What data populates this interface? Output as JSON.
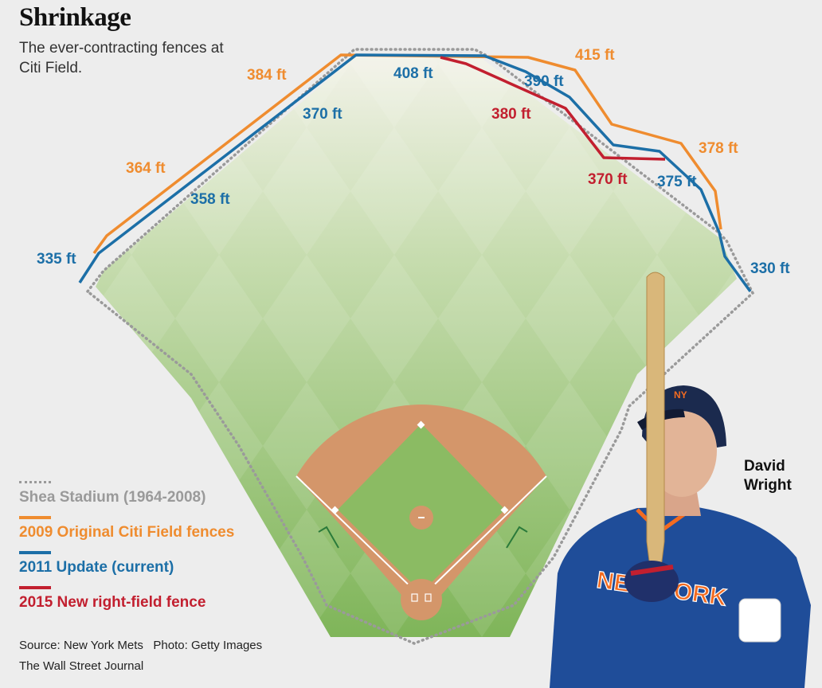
{
  "header": {
    "title": "Shrinkage",
    "subtitle": "The ever-contracting fences at Citi Field."
  },
  "colors": {
    "shea": "#9a9a9a",
    "original": "#ef8c2f",
    "update": "#1c6fa7",
    "new_fence": "#c21f2f",
    "grass": "#8fbf6b",
    "infield_dirt": "#d4966a"
  },
  "distances": {
    "original": [
      "364 ft",
      "384 ft",
      "415 ft",
      "378 ft"
    ],
    "update": [
      "335 ft",
      "358 ft",
      "370 ft",
      "408 ft",
      "390 ft",
      "375 ft",
      "330 ft"
    ],
    "new_fence": [
      "380 ft",
      "370 ft"
    ]
  },
  "legend": [
    {
      "label": "Shea Stadium (1964-2008)",
      "color": "#9a9a9a",
      "style": "dotted"
    },
    {
      "label": "2009 Original Citi Field fences",
      "color": "#ef8c2f",
      "style": "solid"
    },
    {
      "label": "2011 Update (current)",
      "color": "#1c6fa7",
      "style": "solid"
    },
    {
      "label": "2015 New right-field fence",
      "color": "#c21f2f",
      "style": "solid"
    }
  ],
  "player": {
    "name": "David Wright",
    "jersey_text": "NEW YORK"
  },
  "footer": {
    "source": "Source: New York Mets   Photo: Getty Images",
    "publisher": "The Wall Street Journal"
  }
}
